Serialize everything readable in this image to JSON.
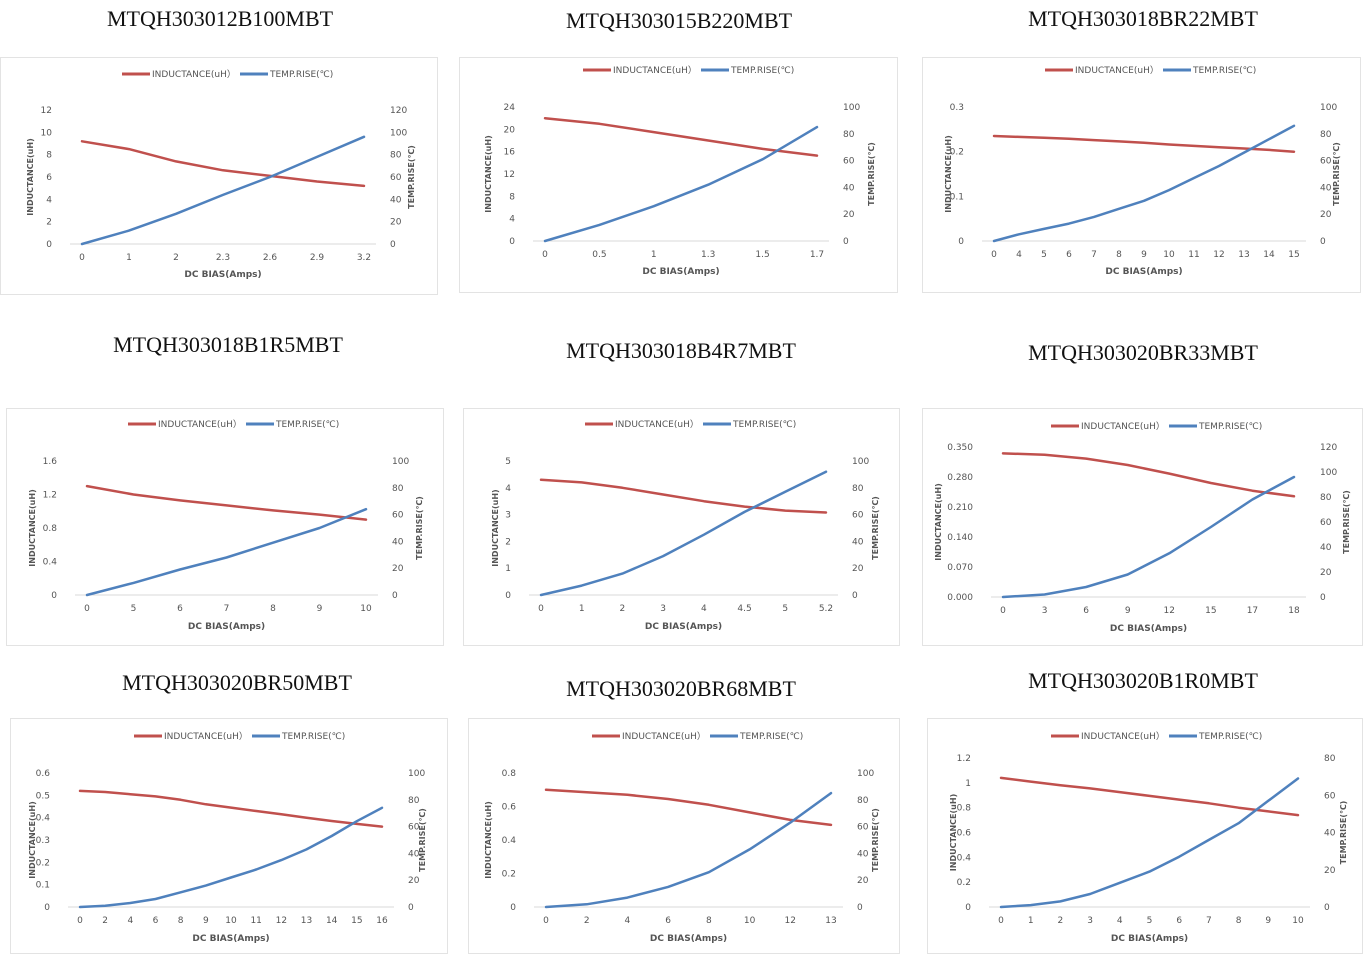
{
  "colors": {
    "inductance": "#c0504d",
    "temp": "#4f81bd",
    "axis_text": "#555555",
    "grid": "#d9d9d9"
  },
  "chart_data": [
    {
      "type": "line",
      "title": "MTQH303012B100MBT",
      "categories": [
        "0",
        "1",
        "2",
        "2.3",
        "2.6",
        "2.9",
        "3.2"
      ],
      "xlabel": "DC BIAS(Amps)",
      "ylabel": "INDUCTANCE(uH)",
      "y2label": "TEMP.RISE(℃)",
      "yticks": [
        "0",
        "2",
        "4",
        "6",
        "8",
        "10",
        "12"
      ],
      "ylim": [
        0,
        12
      ],
      "y2ticks": [
        "0",
        "20",
        "40",
        "60",
        "80",
        "100",
        "120"
      ],
      "y2lim": [
        0,
        120
      ],
      "series": [
        {
          "name": "INDUCTANCE(uH）",
          "axis": "left",
          "values": [
            9.2,
            8.5,
            7.4,
            6.6,
            6.1,
            5.6,
            5.2
          ]
        },
        {
          "name": "TEMP.RISE(℃)",
          "axis": "right",
          "values": [
            0,
            12,
            27,
            44,
            60,
            78,
            96
          ]
        }
      ]
    },
    {
      "type": "line",
      "title": "MTQH303015B220MBT",
      "categories": [
        "0",
        "0.5",
        "1",
        "1.3",
        "1.5",
        "1.7"
      ],
      "xlabel": "DC BIAS(Amps)",
      "ylabel": "INDUCTANCE(uH)",
      "y2label": "TEMP.RISE(℃)",
      "yticks": [
        "0",
        "4",
        "8",
        "12",
        "16",
        "20",
        "24"
      ],
      "ylim": [
        0,
        24
      ],
      "y2ticks": [
        "0",
        "20",
        "40",
        "60",
        "80",
        "100"
      ],
      "y2lim": [
        0,
        100
      ],
      "series": [
        {
          "name": "INDUCTANCE(uH）",
          "axis": "left",
          "values": [
            22,
            21,
            19.5,
            18,
            16.5,
            15.3
          ]
        },
        {
          "name": "TEMP.RISE(℃)",
          "axis": "right",
          "values": [
            0,
            12,
            26,
            42,
            61,
            85
          ]
        }
      ]
    },
    {
      "type": "line",
      "title": "MTQH303018BR22MBT",
      "categories": [
        "0",
        "4",
        "5",
        "6",
        "7",
        "8",
        "9",
        "10",
        "11",
        "12",
        "13",
        "14",
        "15"
      ],
      "xlabel": "DC BIAS(Amps)",
      "ylabel": "INDUCTANCE(uH)",
      "y2label": "TEMP.RISE(℃)",
      "yticks": [
        "0",
        "0.1",
        "0.2",
        "0.3"
      ],
      "ylim": [
        0,
        0.3
      ],
      "y2ticks": [
        "0",
        "20",
        "40",
        "60",
        "80",
        "100"
      ],
      "y2lim": [
        0,
        100
      ],
      "series": [
        {
          "name": "INDUCTANCE(uH）",
          "axis": "left",
          "values": [
            0.235,
            0.233,
            0.231,
            0.229,
            0.226,
            0.223,
            0.22,
            0.216,
            0.213,
            0.21,
            0.207,
            0.204,
            0.2
          ]
        },
        {
          "name": "TEMP.RISE(℃)",
          "axis": "right",
          "values": [
            0,
            5,
            9,
            13,
            18,
            24,
            30,
            38,
            47,
            56,
            66,
            76,
            86
          ]
        }
      ]
    },
    {
      "type": "line",
      "title": "MTQH303018B1R5MBT",
      "categories": [
        "0",
        "5",
        "6",
        "7",
        "8",
        "9",
        "10"
      ],
      "xlabel": "DC BIAS(Amps)",
      "ylabel": "INDUCTANCE(uH)",
      "y2label": "TEMP.RISE(℃)",
      "yticks": [
        "0",
        "0.4",
        "0.8",
        "1.2",
        "1.6"
      ],
      "ylim": [
        0,
        1.6
      ],
      "y2ticks": [
        "0",
        "20",
        "40",
        "60",
        "80",
        "100"
      ],
      "y2lim": [
        0,
        100
      ],
      "series": [
        {
          "name": "INDUCTANCE(uH）",
          "axis": "left",
          "values": [
            1.3,
            1.2,
            1.13,
            1.07,
            1.01,
            0.96,
            0.9
          ]
        },
        {
          "name": "TEMP.RISE(℃)",
          "axis": "right",
          "values": [
            0,
            9,
            19,
            28,
            39,
            50,
            64
          ]
        }
      ]
    },
    {
      "type": "line",
      "title": "MTQH303018B4R7MBT",
      "categories": [
        "0",
        "1",
        "2",
        "3",
        "4",
        "4.5",
        "5",
        "5.2"
      ],
      "xlabel": "DC BIAS(Amps)",
      "ylabel": "INDUCTANCE(uH)",
      "y2label": "TEMP.RISE(℃)",
      "yticks": [
        "0",
        "1",
        "2",
        "3",
        "4",
        "5"
      ],
      "ylim": [
        0,
        5
      ],
      "y2ticks": [
        "0",
        "20",
        "40",
        "60",
        "80",
        "100"
      ],
      "y2lim": [
        0,
        100
      ],
      "series": [
        {
          "name": "INDUCTANCE(uH）",
          "axis": "left",
          "values": [
            4.3,
            4.2,
            4.0,
            3.75,
            3.5,
            3.3,
            3.15,
            3.08
          ]
        },
        {
          "name": "TEMP.RISE(℃)",
          "axis": "right",
          "values": [
            0,
            7,
            16,
            29,
            45,
            62,
            77,
            92
          ]
        }
      ]
    },
    {
      "type": "line",
      "title": "MTQH303020BR33MBT",
      "categories": [
        "0",
        "3",
        "6",
        "9",
        "12",
        "15",
        "17",
        "18"
      ],
      "xlabel": "DC BIAS(Amps)",
      "ylabel": "INDUCTANCE(uH)",
      "y2label": "TEMP.RISE(℃)",
      "yticks": [
        "0.000",
        "0.070",
        "0.140",
        "0.210",
        "0.280",
        "0.350"
      ],
      "ylim": [
        0,
        0.35
      ],
      "y2ticks": [
        "0",
        "20",
        "40",
        "60",
        "80",
        "100",
        "120"
      ],
      "y2lim": [
        0,
        120
      ],
      "series": [
        {
          "name": "INDUCTANCE(uH）",
          "axis": "left",
          "values": [
            0.335,
            0.332,
            0.323,
            0.308,
            0.288,
            0.266,
            0.248,
            0.235
          ]
        },
        {
          "name": "TEMP.RISE(℃)",
          "axis": "right",
          "values": [
            0,
            2,
            8,
            18,
            35,
            56,
            78,
            96
          ]
        }
      ]
    },
    {
      "type": "line",
      "title": "MTQH303020BR50MBT",
      "categories": [
        "0",
        "2",
        "4",
        "6",
        "8",
        "9",
        "10",
        "11",
        "12",
        "13",
        "14",
        "15",
        "16"
      ],
      "xlabel": "DC BIAS(Amps)",
      "ylabel": "INDUCTANCE(uH)",
      "y2label": "TEMP.RISE(℃)",
      "yticks": [
        "0",
        "0.1",
        "0.2",
        "0.3",
        "0.4",
        "0.5",
        "0.6"
      ],
      "ylim": [
        0,
        0.6
      ],
      "y2ticks": [
        "0",
        "20",
        "40",
        "60",
        "80",
        "100"
      ],
      "y2lim": [
        0,
        100
      ],
      "series": [
        {
          "name": "INDUCTANCE(uH）",
          "axis": "left",
          "values": [
            0.52,
            0.515,
            0.505,
            0.495,
            0.48,
            0.46,
            0.445,
            0.43,
            0.415,
            0.4,
            0.385,
            0.372,
            0.36
          ]
        },
        {
          "name": "TEMP.RISE(℃)",
          "axis": "right",
          "values": [
            0,
            1,
            3,
            6,
            11,
            16,
            22,
            28,
            35,
            43,
            53,
            64,
            74
          ]
        }
      ]
    },
    {
      "type": "line",
      "title": "MTQH303020BR68MBT",
      "categories": [
        "0",
        "2",
        "4",
        "6",
        "8",
        "10",
        "12",
        "13"
      ],
      "xlabel": "DC BIAS(Amps)",
      "ylabel": "INDUCTANCE(uH)",
      "y2label": "TEMP.RISE(℃)",
      "yticks": [
        "0",
        "0.2",
        "0.4",
        "0.6",
        "0.8"
      ],
      "ylim": [
        0,
        0.8
      ],
      "y2ticks": [
        "0",
        "20",
        "40",
        "60",
        "80",
        "100"
      ],
      "y2lim": [
        0,
        100
      ],
      "series": [
        {
          "name": "INDUCTANCE(uH）",
          "axis": "left",
          "values": [
            0.7,
            0.685,
            0.67,
            0.645,
            0.61,
            0.565,
            0.52,
            0.49
          ]
        },
        {
          "name": "TEMP.RISE(℃)",
          "axis": "right",
          "values": [
            0,
            2,
            7,
            15,
            26,
            43,
            63,
            85
          ]
        }
      ]
    },
    {
      "type": "line",
      "title": "MTQH303020B1R0MBT",
      "categories": [
        "0",
        "1",
        "2",
        "3",
        "4",
        "5",
        "6",
        "7",
        "8",
        "9",
        "10"
      ],
      "xlabel": "DC BIAS(Amps)",
      "ylabel": "INDUCTANCE(uH)",
      "y2label": "TEMP.RISE(℃)",
      "yticks": [
        "0",
        "0.2",
        "0.4",
        "0.6",
        "0.8",
        "1",
        "1.2"
      ],
      "ylim": [
        0,
        1.2
      ],
      "y2ticks": [
        "0",
        "20",
        "40",
        "60",
        "80"
      ],
      "y2lim": [
        0,
        80
      ],
      "series": [
        {
          "name": "INDUCTANCE(uH）",
          "axis": "left",
          "values": [
            1.04,
            1.01,
            0.98,
            0.955,
            0.925,
            0.895,
            0.865,
            0.835,
            0.8,
            0.77,
            0.74
          ]
        },
        {
          "name": "TEMP.RISE(℃)",
          "axis": "right",
          "values": [
            0,
            1,
            3,
            7,
            13,
            19,
            27,
            36,
            45,
            57,
            69
          ]
        }
      ]
    }
  ]
}
